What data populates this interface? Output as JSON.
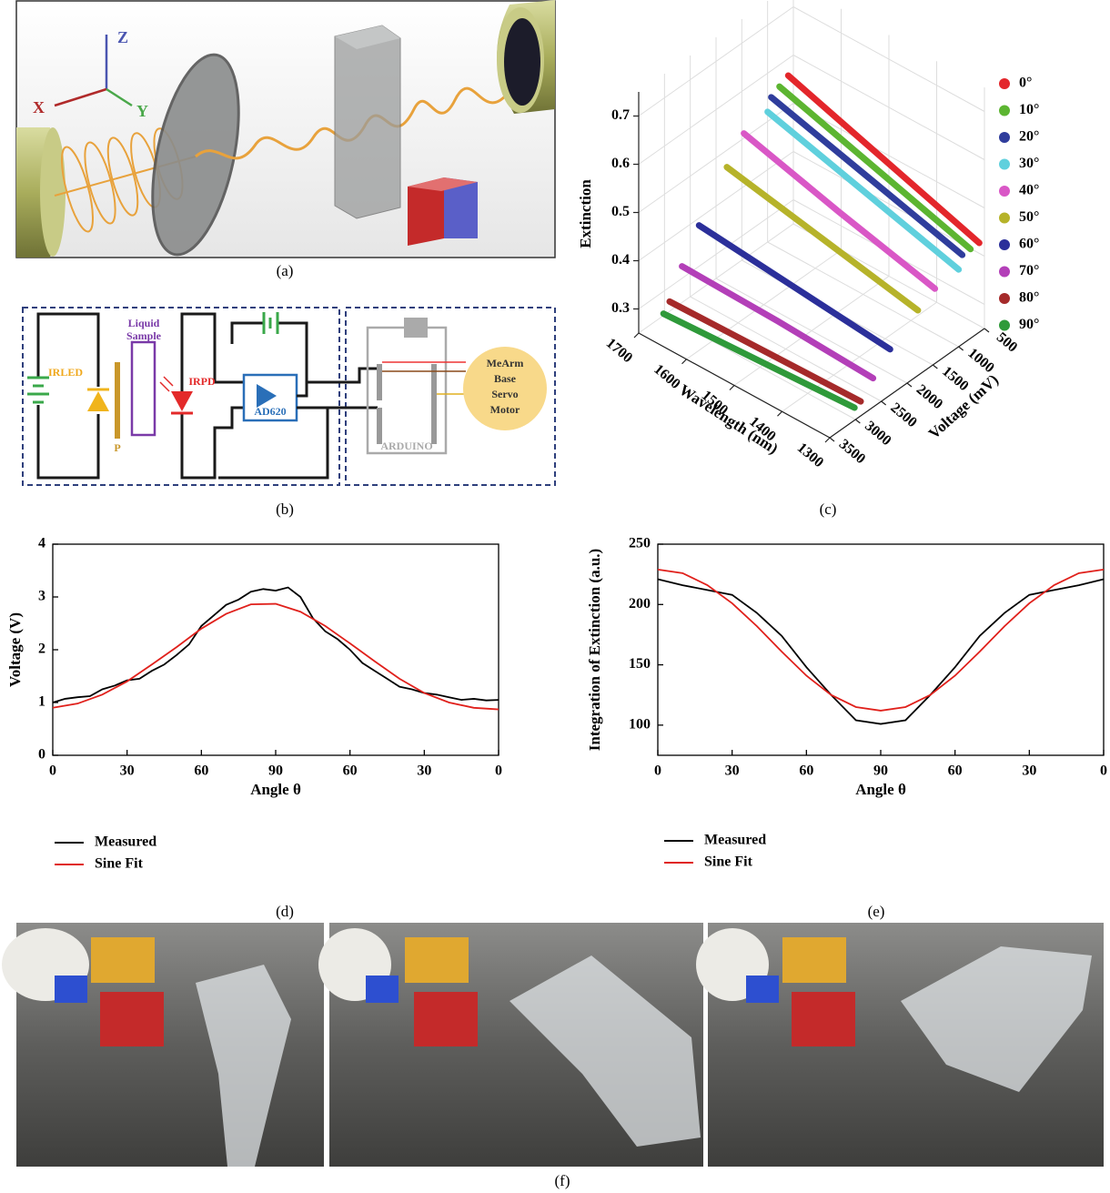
{
  "panel_labels": [
    "(a)",
    "(b)",
    "(c)",
    "(d)",
    "(e)",
    "(f)"
  ],
  "figure_a": {
    "axis_labels": [
      "Z",
      "X",
      "Y"
    ]
  },
  "figure_b": {
    "irled": "IRLED",
    "liquid_sample": [
      "Liquid",
      "Sample"
    ],
    "polarizer": "P",
    "irpd": "IRPD",
    "amplifier": "AD620",
    "controller": "ARDUINO",
    "motor": [
      "MeArm",
      "Base",
      "Servo",
      "Motor"
    ]
  },
  "chart_data": [
    {
      "type": "line3d",
      "xlabel": "Wavelength (nm)",
      "ylabel": "Voltage (mV)",
      "zlabel": "Extinction",
      "xlim": [
        1300,
        1700
      ],
      "xticks": [
        1300,
        1400,
        1500,
        1600,
        1700
      ],
      "ylim": [
        500,
        3500
      ],
      "yticks": [
        500,
        1000,
        1500,
        2000,
        2500,
        3000,
        3500
      ],
      "zlim": [
        0.25,
        0.75
      ],
      "zticks": [
        0.3,
        0.4,
        0.5,
        0.6,
        0.7
      ],
      "grid": true,
      "series": [
        {
          "name": "0°",
          "color": "#e3262b",
          "x": [
            1300,
            1500,
            1700
          ],
          "y": [
            600,
            600,
            600
          ],
          "values": [
            0.435,
            0.5,
            0.565
          ]
        },
        {
          "name": "10°",
          "color": "#5cb531",
          "x": [
            1300,
            1500,
            1700
          ],
          "y": [
            770,
            770,
            770
          ],
          "values": [
            0.435,
            0.495,
            0.555
          ]
        },
        {
          "name": "20°",
          "color": "#2f3d9c",
          "x": [
            1300,
            1500,
            1700
          ],
          "y": [
            930,
            930,
            930
          ],
          "values": [
            0.435,
            0.49,
            0.545
          ]
        },
        {
          "name": "30°",
          "color": "#5fd0dd",
          "x": [
            1300,
            1500,
            1700
          ],
          "y": [
            1000,
            1000,
            1000
          ],
          "values": [
            0.41,
            0.465,
            0.52
          ]
        },
        {
          "name": "40°",
          "color": "#d957c6",
          "x": [
            1300,
            1500,
            1700
          ],
          "y": [
            1460,
            1460,
            1460
          ],
          "values": [
            0.405,
            0.455,
            0.51
          ]
        },
        {
          "name": "50°",
          "color": "#b6b32a",
          "x": [
            1300,
            1500,
            1700
          ],
          "y": [
            1790,
            1790,
            1790
          ],
          "values": [
            0.385,
            0.425,
            0.465
          ]
        },
        {
          "name": "60°",
          "color": "#2b2f9a",
          "x": [
            1300,
            1500,
            1700
          ],
          "y": [
            2330,
            2330,
            2330
          ],
          "values": [
            0.345,
            0.365,
            0.385
          ]
        },
        {
          "name": "70°",
          "color": "#b33fb8",
          "x": [
            1300,
            1500,
            1700
          ],
          "y": [
            2660,
            2660,
            2660
          ],
          "values": [
            0.31,
            0.32,
            0.325
          ]
        },
        {
          "name": "80°",
          "color": "#a52a2a",
          "x": [
            1300,
            1500,
            1700
          ],
          "y": [
            2900,
            2900,
            2900
          ],
          "values": [
            0.28,
            0.275,
            0.27
          ]
        },
        {
          "name": "90°",
          "color": "#2f9a3a",
          "x": [
            1300,
            1500,
            1700
          ],
          "y": [
            3020,
            3020,
            3020
          ],
          "values": [
            0.276,
            0.265,
            0.254
          ]
        }
      ]
    },
    {
      "type": "line",
      "xlabel": "Angle θ",
      "ylabel": "Voltage (V)",
      "xlim": [
        0,
        180
      ],
      "xticks": [
        0,
        30,
        60,
        90,
        {
          "value": 120,
          "label": "60"
        },
        {
          "value": 150,
          "label": "30"
        },
        {
          "value": 180,
          "label": "0"
        }
      ],
      "ylim": [
        0,
        4
      ],
      "yticks": [
        0,
        1,
        2,
        3,
        4
      ],
      "series": [
        {
          "name": "Measured",
          "color": "#000000",
          "x": [
            0,
            5,
            10,
            15,
            20,
            25,
            30,
            35,
            40,
            45,
            50,
            55,
            60,
            65,
            70,
            75,
            80,
            85,
            90,
            95,
            100,
            105,
            110,
            115,
            120,
            125,
            130,
            135,
            140,
            145,
            150,
            155,
            160,
            165,
            170,
            175,
            180
          ],
          "values": [
            1.0,
            1.07,
            1.1,
            1.12,
            1.25,
            1.32,
            1.42,
            1.45,
            1.6,
            1.72,
            1.9,
            2.1,
            2.45,
            2.65,
            2.85,
            2.95,
            3.1,
            3.15,
            3.12,
            3.18,
            3.0,
            2.6,
            2.35,
            2.2,
            2.0,
            1.75,
            1.6,
            1.45,
            1.3,
            1.25,
            1.18,
            1.15,
            1.1,
            1.05,
            1.07,
            1.04,
            1.05
          ]
        },
        {
          "name": "Sine Fit",
          "color": "#e0201b",
          "x": [
            0,
            10,
            20,
            30,
            40,
            50,
            60,
            70,
            80,
            90,
            100,
            110,
            120,
            130,
            140,
            150,
            160,
            170,
            180
          ],
          "values": [
            0.9,
            0.98,
            1.15,
            1.4,
            1.72,
            2.05,
            2.4,
            2.68,
            2.86,
            2.87,
            2.72,
            2.45,
            2.12,
            1.78,
            1.45,
            1.18,
            1.0,
            0.9,
            0.87
          ]
        }
      ]
    },
    {
      "type": "line",
      "xlabel": "Angle θ",
      "ylabel": "Integration of Extinction (a.u.)",
      "xlim": [
        0,
        180
      ],
      "xticks": [
        0,
        30,
        60,
        90,
        {
          "value": 120,
          "label": "60"
        },
        {
          "value": 150,
          "label": "30"
        },
        {
          "value": 180,
          "label": "0"
        }
      ],
      "ylim": [
        75,
        250
      ],
      "yticks": [
        100,
        150,
        200,
        250
      ],
      "series": [
        {
          "name": "Measured",
          "color": "#000000",
          "x": [
            0,
            10,
            20,
            30,
            40,
            50,
            60,
            70,
            80,
            90,
            100,
            110,
            120,
            130,
            140,
            150,
            160,
            170,
            180
          ],
          "values": [
            221,
            216,
            212,
            208,
            193,
            174,
            148,
            125,
            104,
            101,
            104,
            125,
            148,
            174,
            193,
            208,
            212,
            216,
            221
          ]
        },
        {
          "name": "Sine Fit",
          "color": "#e0201b",
          "x": [
            0,
            10,
            20,
            30,
            40,
            50,
            60,
            70,
            80,
            90,
            100,
            110,
            120,
            130,
            140,
            150,
            160,
            170,
            180
          ],
          "values": [
            229,
            226,
            216,
            201,
            182,
            161,
            141,
            125,
            115,
            112,
            115,
            125,
            141,
            161,
            182,
            201,
            216,
            226,
            229
          ]
        }
      ]
    }
  ]
}
